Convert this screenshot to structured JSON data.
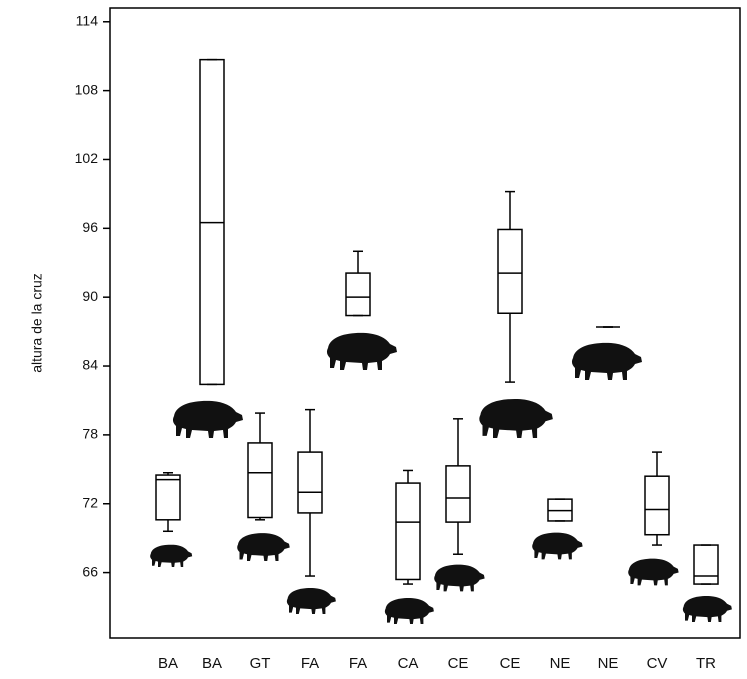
{
  "chart_data": {
    "type": "box",
    "y_label": "altura de la cruz",
    "categories": [
      "BA",
      "BA",
      "GT",
      "FA",
      "FA",
      "CA",
      "CE",
      "CE",
      "NE",
      "NE",
      "CV",
      "TR"
    ],
    "boxes": [
      {
        "min": 69.6,
        "q1": 70.6,
        "median": 74.1,
        "q3": 74.5,
        "max": 74.7
      },
      {
        "min": 82.4,
        "q1": 82.4,
        "median": 96.5,
        "q3": 110.7,
        "max": 110.7
      },
      {
        "min": 70.6,
        "q1": 70.8,
        "median": 74.7,
        "q3": 77.3,
        "max": 79.9
      },
      {
        "min": 65.7,
        "q1": 71.2,
        "median": 73.0,
        "q3": 76.5,
        "max": 80.2
      },
      {
        "min": 88.4,
        "q1": 88.4,
        "median": 90.0,
        "q3": 92.1,
        "max": 94.0
      },
      {
        "min": 65.0,
        "q1": 65.4,
        "median": 70.4,
        "q3": 73.8,
        "max": 74.9
      },
      {
        "min": 67.6,
        "q1": 70.4,
        "median": 72.5,
        "q3": 75.3,
        "max": 79.4
      },
      {
        "min": 82.6,
        "q1": 88.6,
        "median": 92.1,
        "q3": 95.9,
        "max": 99.2
      },
      {
        "min": 70.5,
        "q1": 70.5,
        "median": 71.4,
        "q3": 72.4,
        "max": 72.4
      },
      {
        "min": 87.4,
        "q1": 87.4,
        "median": 87.4,
        "q3": 87.4,
        "max": 87.4
      },
      {
        "min": 68.4,
        "q1": 69.3,
        "median": 71.5,
        "q3": 74.4,
        "max": 76.5
      },
      {
        "min": 65.0,
        "q1": 65.0,
        "median": 65.7,
        "q3": 68.4,
        "max": 68.4
      }
    ],
    "ylim": [
      60.3,
      115.2
    ],
    "yticks": [
      66,
      72,
      78,
      84,
      90,
      96,
      102,
      108,
      114
    ],
    "color": "#000000"
  }
}
